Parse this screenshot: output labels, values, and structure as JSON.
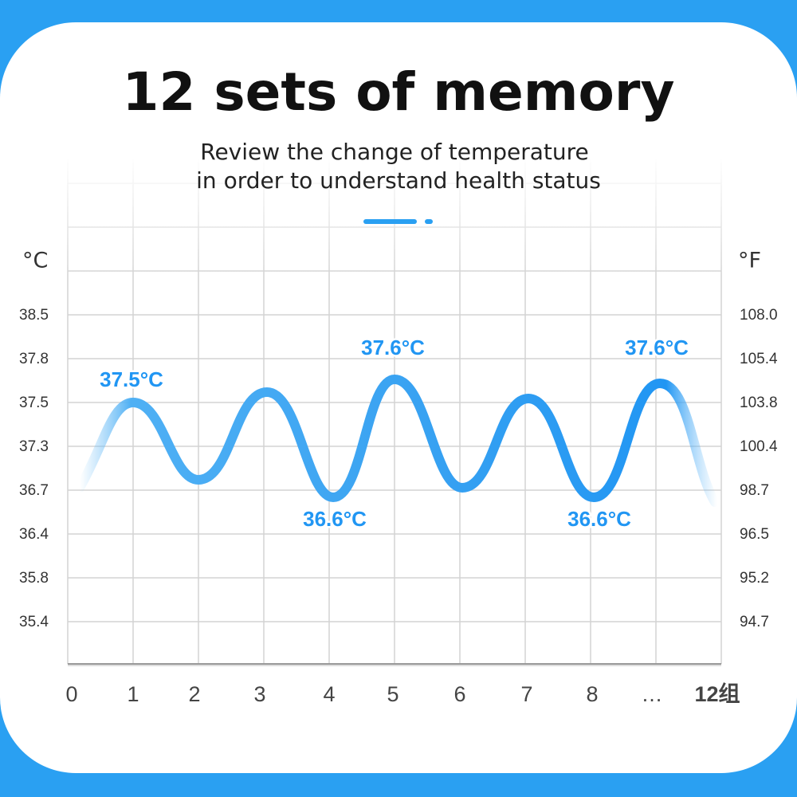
{
  "header": {
    "title": "12 sets of memory",
    "subtitle": [
      "Review the change of temperature",
      "in order to understand health status"
    ]
  },
  "graph": {
    "left_unit": "°C",
    "right_unit": "°F",
    "left_ticks": [
      "38.5",
      "37.8",
      "37.5",
      "37.3",
      "36.7",
      "36.4",
      "35.8",
      "35.4"
    ],
    "right_ticks": [
      "108.0",
      "105.4",
      "103.8",
      "100.4",
      "98.7",
      "96.5",
      "95.2",
      "94.7"
    ],
    "x_labels": [
      "0",
      "1",
      "2",
      "3",
      "4",
      "5",
      "6",
      "7",
      "8",
      "…",
      "12组"
    ],
    "callouts": [
      "37.5°C",
      "37.6°C",
      "37.6°C",
      "36.6°C",
      "36.6°C"
    ]
  }
}
